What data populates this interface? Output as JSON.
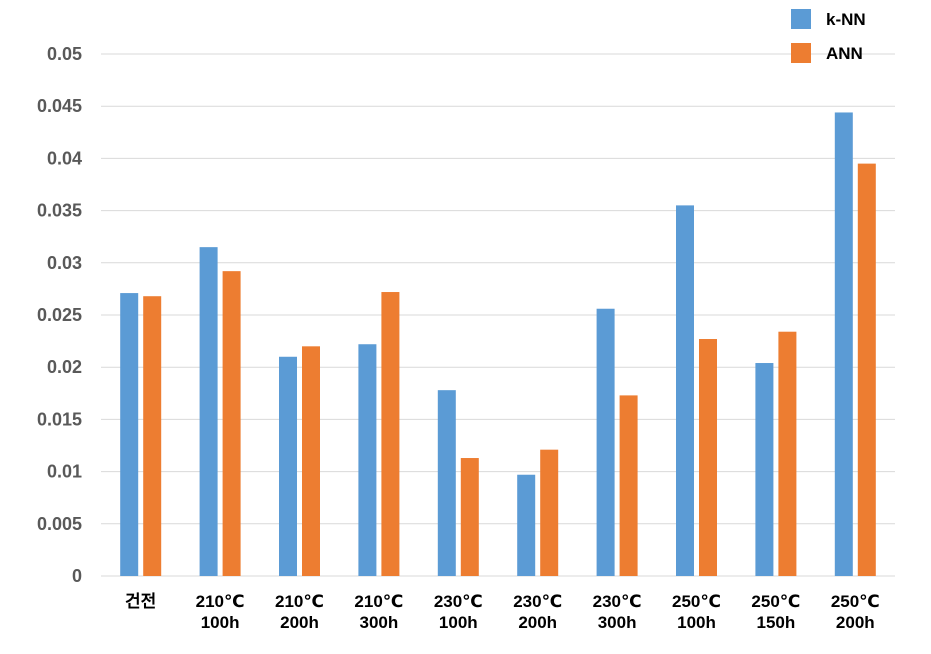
{
  "chart_data": {
    "type": "bar",
    "title": "",
    "xlabel": "",
    "ylabel": "",
    "ylim": [
      0,
      0.05
    ],
    "y_ticks": [
      "0",
      "0.005",
      "0.01",
      "0.015",
      "0.02",
      "0.025",
      "0.03",
      "0.035",
      "0.04",
      "0.045",
      "0.05"
    ],
    "grid": true,
    "legend_position": "top-right",
    "categories": [
      [
        "건전"
      ],
      [
        "210℃",
        "100h"
      ],
      [
        "210℃",
        "200h"
      ],
      [
        "210℃",
        "300h"
      ],
      [
        "230℃",
        "100h"
      ],
      [
        "230℃",
        "200h"
      ],
      [
        "230℃",
        "300h"
      ],
      [
        "250℃",
        "100h"
      ],
      [
        "250℃",
        "150h"
      ],
      [
        "250℃",
        "200h"
      ]
    ],
    "series": [
      {
        "name": "k-NN",
        "color": "#5B9BD5",
        "values": [
          0.0271,
          0.0315,
          0.021,
          0.0222,
          0.0178,
          0.0097,
          0.0256,
          0.0355,
          0.0204,
          0.0444
        ]
      },
      {
        "name": "ANN",
        "color": "#ED7D31",
        "values": [
          0.0268,
          0.0292,
          0.022,
          0.0272,
          0.0113,
          0.0121,
          0.0173,
          0.0227,
          0.0234,
          0.0395
        ]
      }
    ]
  },
  "colors": {
    "gridline": "#D9D9D9",
    "axis_text": "#595959",
    "category_text": "#000000"
  }
}
